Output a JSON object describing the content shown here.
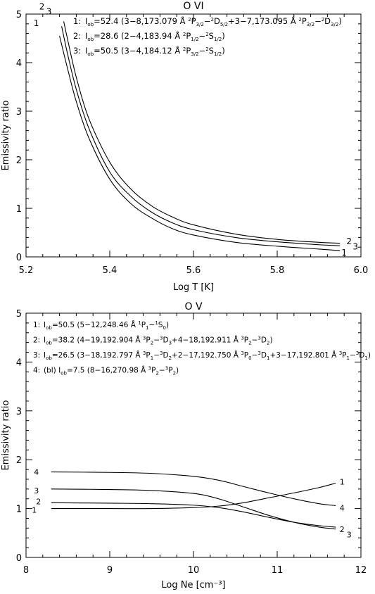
{
  "chart_data": [
    {
      "type": "line",
      "title": "O VI",
      "xlabel": "Log T [K]",
      "ylabel": "Emissivity ratio",
      "xlim": [
        5.2,
        6.0
      ],
      "ylim": [
        0,
        5
      ],
      "xticks": [
        "5.2",
        "5.4",
        "5.6",
        "5.8",
        "6.0"
      ],
      "yticks": [
        "0",
        "1",
        "2",
        "3",
        "4",
        "5"
      ],
      "legend": [
        {
          "num": "1:",
          "parts": [
            [
              "t",
              "I"
            ],
            [
              "sub",
              "ob"
            ],
            [
              "t",
              "=52.4  (3−8,173.079 Å "
            ],
            [
              "sup",
              "2"
            ],
            [
              "t",
              "P"
            ],
            [
              "sub",
              "3/2"
            ],
            [
              "t",
              "−"
            ],
            [
              "sup",
              "2"
            ],
            [
              "t",
              "D"
            ],
            [
              "sub",
              "5/2"
            ],
            [
              "t",
              "+3−7,173.095 Å "
            ],
            [
              "sup",
              "2"
            ],
            [
              "t",
              "P"
            ],
            [
              "sub",
              "3/2"
            ],
            [
              "t",
              "−"
            ],
            [
              "sup",
              "2"
            ],
            [
              "t",
              "D"
            ],
            [
              "sub",
              "3/2"
            ],
            [
              "t",
              ")"
            ]
          ]
        },
        {
          "num": "2:",
          "parts": [
            [
              "t",
              "I"
            ],
            [
              "sub",
              "ob"
            ],
            [
              "t",
              "=28.6  (2−4,183.94 Å "
            ],
            [
              "sup",
              "2"
            ],
            [
              "t",
              "P"
            ],
            [
              "sub",
              "1/2"
            ],
            [
              "t",
              "−"
            ],
            [
              "sup",
              "2"
            ],
            [
              "t",
              "S"
            ],
            [
              "sub",
              "1/2"
            ],
            [
              "t",
              ")"
            ]
          ]
        },
        {
          "num": "3:",
          "parts": [
            [
              "t",
              "I"
            ],
            [
              "sub",
              "ob"
            ],
            [
              "t",
              "=50.5  (3−4,184.12 Å "
            ],
            [
              "sup",
              "2"
            ],
            [
              "t",
              "P"
            ],
            [
              "sub",
              "3/2"
            ],
            [
              "t",
              "−"
            ],
            [
              "sup",
              "2"
            ],
            [
              "t",
              "S"
            ],
            [
              "sub",
              "1/2"
            ],
            [
              "t",
              ")"
            ]
          ]
        }
      ],
      "series": [
        {
          "name": "1",
          "x": [
            5.28,
            5.3,
            5.32,
            5.35,
            5.4,
            5.45,
            5.5,
            5.55,
            5.6,
            5.7,
            5.8,
            5.9,
            5.95
          ],
          "y": [
            4.55,
            3.85,
            3.2,
            2.45,
            1.6,
            1.1,
            0.8,
            0.58,
            0.45,
            0.3,
            0.22,
            0.16,
            0.13
          ]
        },
        {
          "name": "2",
          "x": [
            5.285,
            5.3,
            5.32,
            5.35,
            5.4,
            5.45,
            5.5,
            5.55,
            5.6,
            5.7,
            5.8,
            5.9,
            5.95
          ],
          "y": [
            4.75,
            4.15,
            3.45,
            2.65,
            1.75,
            1.25,
            0.92,
            0.7,
            0.56,
            0.4,
            0.31,
            0.25,
            0.23
          ]
        },
        {
          "name": "3",
          "x": [
            5.29,
            5.3,
            5.32,
            5.35,
            5.4,
            5.45,
            5.5,
            5.55,
            5.6,
            5.7,
            5.8,
            5.9,
            5.95
          ],
          "y": [
            4.85,
            4.45,
            3.7,
            2.85,
            1.95,
            1.4,
            1.05,
            0.82,
            0.66,
            0.47,
            0.36,
            0.3,
            0.28
          ]
        }
      ],
      "curve_labels": [
        "1",
        "2",
        "3"
      ]
    },
    {
      "type": "line",
      "title": "O V",
      "xlabel": "Log Ne [cm⁻³]",
      "ylabel": "Emissivity ratio",
      "xlim": [
        8,
        12
      ],
      "ylim": [
        0,
        5
      ],
      "xticks": [
        "8",
        "9",
        "10",
        "11",
        "12"
      ],
      "yticks": [
        "0",
        "1",
        "2",
        "3",
        "4",
        "5"
      ],
      "legend": [
        {
          "num": "1:",
          "parts": [
            [
              "t",
              "I"
            ],
            [
              "sub",
              "ob"
            ],
            [
              "t",
              "=50.5  (5−12,248.46 Å "
            ],
            [
              "sup",
              "1"
            ],
            [
              "t",
              "P"
            ],
            [
              "sub",
              "1"
            ],
            [
              "t",
              "−"
            ],
            [
              "sup",
              "1"
            ],
            [
              "t",
              "S"
            ],
            [
              "sub",
              "0"
            ],
            [
              "t",
              ")"
            ]
          ]
        },
        {
          "num": "2:",
          "parts": [
            [
              "t",
              "I"
            ],
            [
              "sub",
              "ob"
            ],
            [
              "t",
              "=38.2  (4−19,192.904 Å "
            ],
            [
              "sup",
              "3"
            ],
            [
              "t",
              "P"
            ],
            [
              "sub",
              "2"
            ],
            [
              "t",
              "−"
            ],
            [
              "sup",
              "3"
            ],
            [
              "t",
              "D"
            ],
            [
              "sub",
              "3"
            ],
            [
              "t",
              "+4−18,192.911 Å "
            ],
            [
              "sup",
              "3"
            ],
            [
              "t",
              "P"
            ],
            [
              "sub",
              "2"
            ],
            [
              "t",
              "−"
            ],
            [
              "sup",
              "3"
            ],
            [
              "t",
              "D"
            ],
            [
              "sub",
              "2"
            ],
            [
              "t",
              ")"
            ]
          ]
        },
        {
          "num": "3:",
          "parts": [
            [
              "t",
              "I"
            ],
            [
              "sub",
              "ob"
            ],
            [
              "t",
              "=26.5  (3−18,192.797 Å "
            ],
            [
              "sup",
              "3"
            ],
            [
              "t",
              "P"
            ],
            [
              "sub",
              "1"
            ],
            [
              "t",
              "−"
            ],
            [
              "sup",
              "3"
            ],
            [
              "t",
              "D"
            ],
            [
              "sub",
              "2"
            ],
            [
              "t",
              "+2−17,192.750 Å "
            ],
            [
              "sup",
              "3"
            ],
            [
              "t",
              "P"
            ],
            [
              "sub",
              "0"
            ],
            [
              "t",
              "−"
            ],
            [
              "sup",
              "3"
            ],
            [
              "t",
              "D"
            ],
            [
              "sub",
              "1"
            ],
            [
              "t",
              "+3−17,192.801 Å "
            ],
            [
              "sup",
              "3"
            ],
            [
              "t",
              "P"
            ],
            [
              "sub",
              "1"
            ],
            [
              "t",
              "−"
            ],
            [
              "sup",
              "3"
            ],
            [
              "t",
              "D"
            ],
            [
              "sub",
              "1"
            ],
            [
              "t",
              ")"
            ]
          ]
        },
        {
          "num": "4:",
          "parts": [
            [
              "t",
              "(bl) I"
            ],
            [
              "sub",
              "ob"
            ],
            [
              "t",
              "=7.5  (8−16,270.98 Å "
            ],
            [
              "sup",
              "3"
            ],
            [
              "t",
              "P"
            ],
            [
              "sub",
              "2"
            ],
            [
              "t",
              "−"
            ],
            [
              "sup",
              "3"
            ],
            [
              "t",
              "P"
            ],
            [
              "sub",
              "2"
            ],
            [
              "t",
              ")"
            ]
          ]
        }
      ],
      "series": [
        {
          "name": "1",
          "x": [
            8.3,
            9.0,
            9.5,
            10.0,
            10.3,
            10.6,
            10.9,
            11.2,
            11.5,
            11.7
          ],
          "y": [
            1.0,
            1.0,
            1.0,
            1.02,
            1.05,
            1.12,
            1.22,
            1.32,
            1.43,
            1.52
          ]
        },
        {
          "name": "2",
          "x": [
            8.3,
            9.0,
            9.5,
            10.0,
            10.3,
            10.6,
            10.9,
            11.2,
            11.5,
            11.7
          ],
          "y": [
            1.12,
            1.11,
            1.1,
            1.07,
            1.02,
            0.93,
            0.82,
            0.72,
            0.65,
            0.62
          ]
        },
        {
          "name": "3",
          "x": [
            8.3,
            9.0,
            9.5,
            10.0,
            10.3,
            10.6,
            10.9,
            11.2,
            11.5,
            11.7
          ],
          "y": [
            1.4,
            1.39,
            1.37,
            1.31,
            1.2,
            1.03,
            0.86,
            0.72,
            0.62,
            0.58
          ]
        },
        {
          "name": "4",
          "x": [
            8.3,
            9.0,
            9.5,
            10.0,
            10.3,
            10.6,
            10.9,
            11.2,
            11.5,
            11.7
          ],
          "y": [
            1.75,
            1.74,
            1.72,
            1.66,
            1.58,
            1.45,
            1.32,
            1.2,
            1.1,
            1.06
          ]
        }
      ],
      "curve_labels": [
        "1",
        "2",
        "3",
        "4"
      ]
    }
  ]
}
